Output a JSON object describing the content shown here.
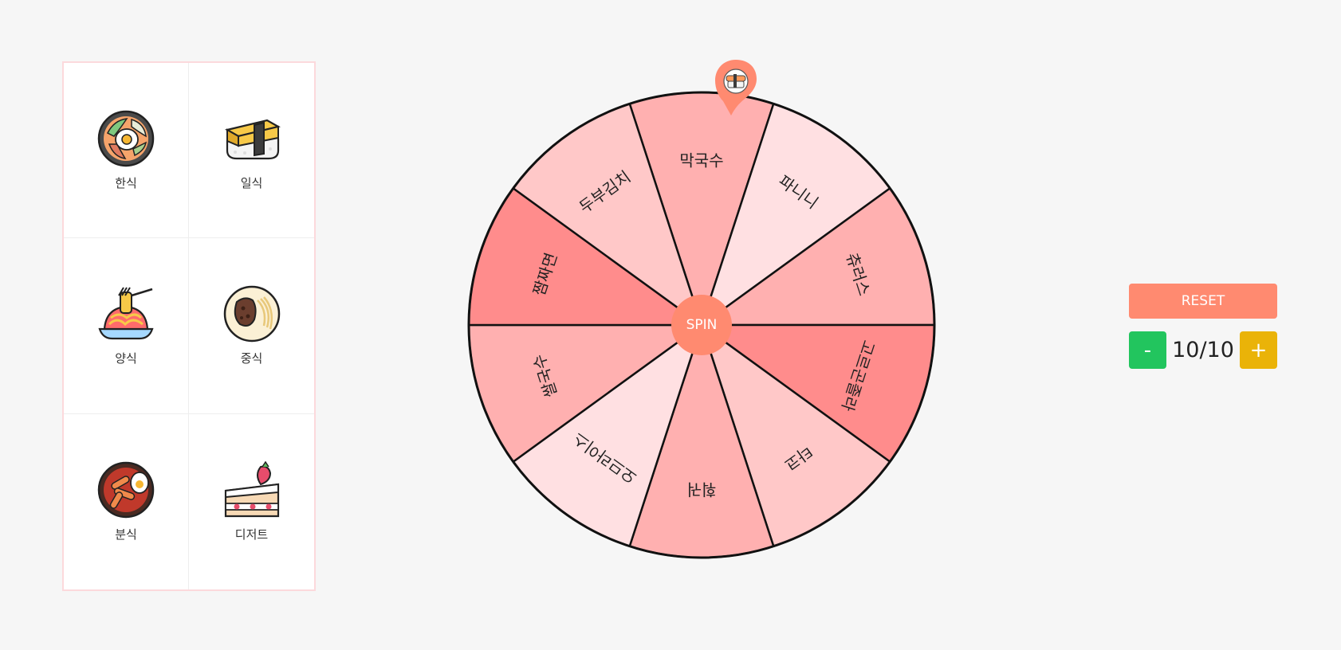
{
  "categories": [
    {
      "label": "한식",
      "icon": "bibimbap-icon"
    },
    {
      "label": "일식",
      "icon": "sushi-icon"
    },
    {
      "label": "양식",
      "icon": "pasta-icon"
    },
    {
      "label": "중식",
      "icon": "jajangmyeon-icon"
    },
    {
      "label": "분식",
      "icon": "tteokbokki-icon"
    },
    {
      "label": "디저트",
      "icon": "cake-icon"
    }
  ],
  "wheel": {
    "items": [
      "막국수",
      "파니니",
      "츄러스",
      "고르곤졸라",
      "타코",
      "훠궈",
      "오므라이스",
      "쌀국수",
      "짬짜면",
      "두부김치"
    ],
    "colors": [
      "#ffb0b0",
      "#ffe0e2",
      "#ffb0b0",
      "#ff8c8c",
      "#ffc8c8",
      "#ffb0b0",
      "#ffe0e2",
      "#ffb0b0",
      "#ff8c8c",
      "#ffc8c8"
    ],
    "spin_label": "SPIN",
    "pointer_icon": "sushi-icon",
    "pointer_color": "#ff8a70"
  },
  "controls": {
    "reset_label": "RESET",
    "minus_label": "-",
    "plus_label": "+",
    "count_display": "10/10"
  }
}
